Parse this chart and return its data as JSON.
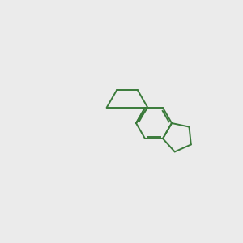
{
  "bg_color": "#ebebeb",
  "bond_color": "#3a7a3a",
  "n_color": "#0000cc",
  "o_color": "#cc0000",
  "cl_color": "#33cc33",
  "text_color": "#3a7a3a",
  "figsize": [
    3.0,
    3.0
  ],
  "dpi": 100,
  "lw": 1.4,
  "fontsize": 7.5
}
